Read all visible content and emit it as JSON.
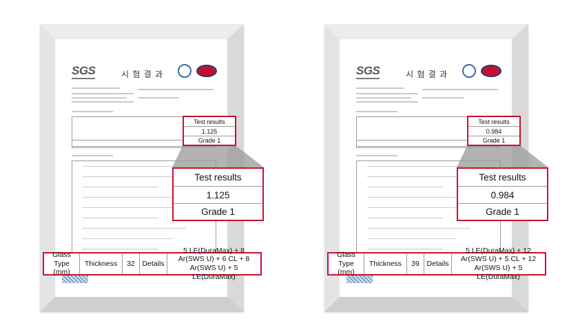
{
  "documents": [
    {
      "logo": "SGS",
      "title": "시 험 결 과",
      "results": {
        "header": "Test results",
        "value": 1.125,
        "grade": "Grade 1"
      },
      "glass": {
        "label": "Glass Type (mm)",
        "thickness_label": "Thickness",
        "thickness": 32,
        "details_label": "Details",
        "details": "5 LE(DuraMax) + 8 Ar(SWS U) + 6 CL + 8 Ar(SWS U) + 5 LE(DuraMax)"
      }
    },
    {
      "logo": "SGS",
      "title": "시 험 결 과",
      "results": {
        "header": "Test results",
        "value": 0.984,
        "grade": "Grade 1"
      },
      "glass": {
        "label": "Glass Type (mm)",
        "thickness_label": "Thickness",
        "thickness": 39,
        "details_label": "Details",
        "details": "5 LE(DuraMax) + 12 Ar(SWS U) + 5 CL + 12 Ar(SWS U) + 5 LE(DuraMax)"
      }
    }
  ]
}
